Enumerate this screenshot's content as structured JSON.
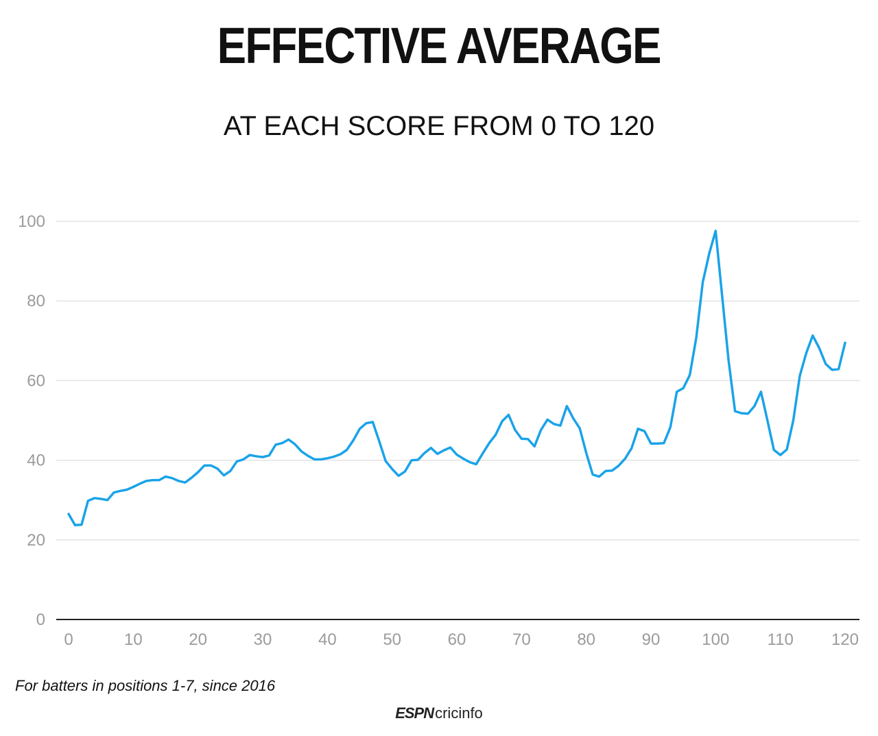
{
  "header": {
    "title": "EFFECTIVE AVERAGE",
    "subtitle": "AT EACH SCORE FROM 0 TO 120"
  },
  "footer": {
    "footnote": "For batters in positions 1-7, since 2016",
    "logo_espn": "ESPN",
    "logo_cricinfo": "cricinfo"
  },
  "colors": {
    "line": "#1aa3e8",
    "grid": "#e3e3e3",
    "tick_label": "#9b9b9b",
    "axis": "#222222"
  },
  "chart_data": {
    "type": "line",
    "title": "EFFECTIVE AVERAGE",
    "subtitle": "AT EACH SCORE FROM 0 TO 120",
    "xlabel": "",
    "ylabel": "",
    "xlim": [
      0,
      120
    ],
    "ylim": [
      0,
      100
    ],
    "xticks": [
      0,
      10,
      20,
      30,
      40,
      50,
      60,
      70,
      80,
      90,
      100,
      110,
      120
    ],
    "yticks": [
      0,
      20,
      40,
      60,
      80,
      100
    ],
    "grid": "horizontal",
    "series": [
      {
        "values": [
          [
            0,
            26.5
          ],
          [
            1,
            23.7
          ],
          [
            2,
            23.8
          ],
          [
            3,
            29.8
          ],
          [
            4,
            30.5
          ],
          [
            5,
            30.3
          ],
          [
            6,
            30.0
          ],
          [
            7,
            31.9
          ],
          [
            8,
            32.3
          ],
          [
            9,
            32.6
          ],
          [
            10,
            33.3
          ],
          [
            11,
            34.1
          ],
          [
            12,
            34.8
          ],
          [
            13,
            35.0
          ],
          [
            14,
            35.0
          ],
          [
            15,
            35.9
          ],
          [
            16,
            35.5
          ],
          [
            17,
            34.8
          ],
          [
            18,
            34.4
          ],
          [
            19,
            35.6
          ],
          [
            20,
            37.0
          ],
          [
            21,
            38.7
          ],
          [
            22,
            38.7
          ],
          [
            23,
            37.9
          ],
          [
            24,
            36.2
          ],
          [
            25,
            37.3
          ],
          [
            26,
            39.7
          ],
          [
            27,
            40.2
          ],
          [
            28,
            41.3
          ],
          [
            29,
            41.0
          ],
          [
            30,
            40.8
          ],
          [
            31,
            41.2
          ],
          [
            32,
            43.9
          ],
          [
            33,
            44.3
          ],
          [
            34,
            45.2
          ],
          [
            35,
            44.0
          ],
          [
            36,
            42.2
          ],
          [
            37,
            41.1
          ],
          [
            38,
            40.2
          ],
          [
            39,
            40.2
          ],
          [
            40,
            40.5
          ],
          [
            41,
            40.9
          ],
          [
            42,
            41.5
          ],
          [
            43,
            42.6
          ],
          [
            44,
            45.0
          ],
          [
            45,
            47.9
          ],
          [
            46,
            49.3
          ],
          [
            47,
            49.6
          ],
          [
            48,
            44.8
          ],
          [
            49,
            39.8
          ],
          [
            50,
            37.8
          ],
          [
            51,
            36.1
          ],
          [
            52,
            37.2
          ],
          [
            53,
            40.0
          ],
          [
            54,
            40.1
          ],
          [
            55,
            41.8
          ],
          [
            56,
            43.1
          ],
          [
            57,
            41.6
          ],
          [
            58,
            42.5
          ],
          [
            59,
            43.2
          ],
          [
            60,
            41.4
          ],
          [
            61,
            40.4
          ],
          [
            62,
            39.5
          ],
          [
            63,
            39.0
          ],
          [
            64,
            41.7
          ],
          [
            65,
            44.3
          ],
          [
            66,
            46.4
          ],
          [
            67,
            49.8
          ],
          [
            68,
            51.4
          ],
          [
            69,
            47.6
          ],
          [
            70,
            45.4
          ],
          [
            71,
            45.3
          ],
          [
            72,
            43.5
          ],
          [
            73,
            47.6
          ],
          [
            74,
            50.2
          ],
          [
            75,
            49.1
          ],
          [
            76,
            48.7
          ],
          [
            77,
            53.6
          ],
          [
            78,
            50.5
          ],
          [
            79,
            48.0
          ],
          [
            80,
            41.8
          ],
          [
            81,
            36.4
          ],
          [
            82,
            35.9
          ],
          [
            83,
            37.3
          ],
          [
            84,
            37.4
          ],
          [
            85,
            38.6
          ],
          [
            86,
            40.4
          ],
          [
            87,
            43.0
          ],
          [
            88,
            47.9
          ],
          [
            89,
            47.3
          ],
          [
            90,
            44.2
          ],
          [
            91,
            44.2
          ],
          [
            92,
            44.3
          ],
          [
            93,
            48.3
          ],
          [
            94,
            57.2
          ],
          [
            95,
            58.1
          ],
          [
            96,
            61.4
          ],
          [
            97,
            70.7
          ],
          [
            98,
            84.7
          ],
          [
            99,
            91.9
          ],
          [
            100,
            97.6
          ],
          [
            101,
            81.2
          ],
          [
            102,
            65.0
          ],
          [
            103,
            52.3
          ],
          [
            104,
            51.8
          ],
          [
            105,
            51.7
          ],
          [
            106,
            53.6
          ],
          [
            107,
            57.2
          ],
          [
            108,
            50.0
          ],
          [
            109,
            42.6
          ],
          [
            110,
            41.3
          ],
          [
            111,
            42.7
          ],
          [
            112,
            50.0
          ],
          [
            113,
            61.2
          ],
          [
            114,
            66.9
          ],
          [
            115,
            71.3
          ],
          [
            116,
            68.2
          ],
          [
            117,
            64.2
          ],
          [
            118,
            62.7
          ],
          [
            119,
            62.9
          ],
          [
            120,
            69.5
          ]
        ]
      }
    ]
  }
}
